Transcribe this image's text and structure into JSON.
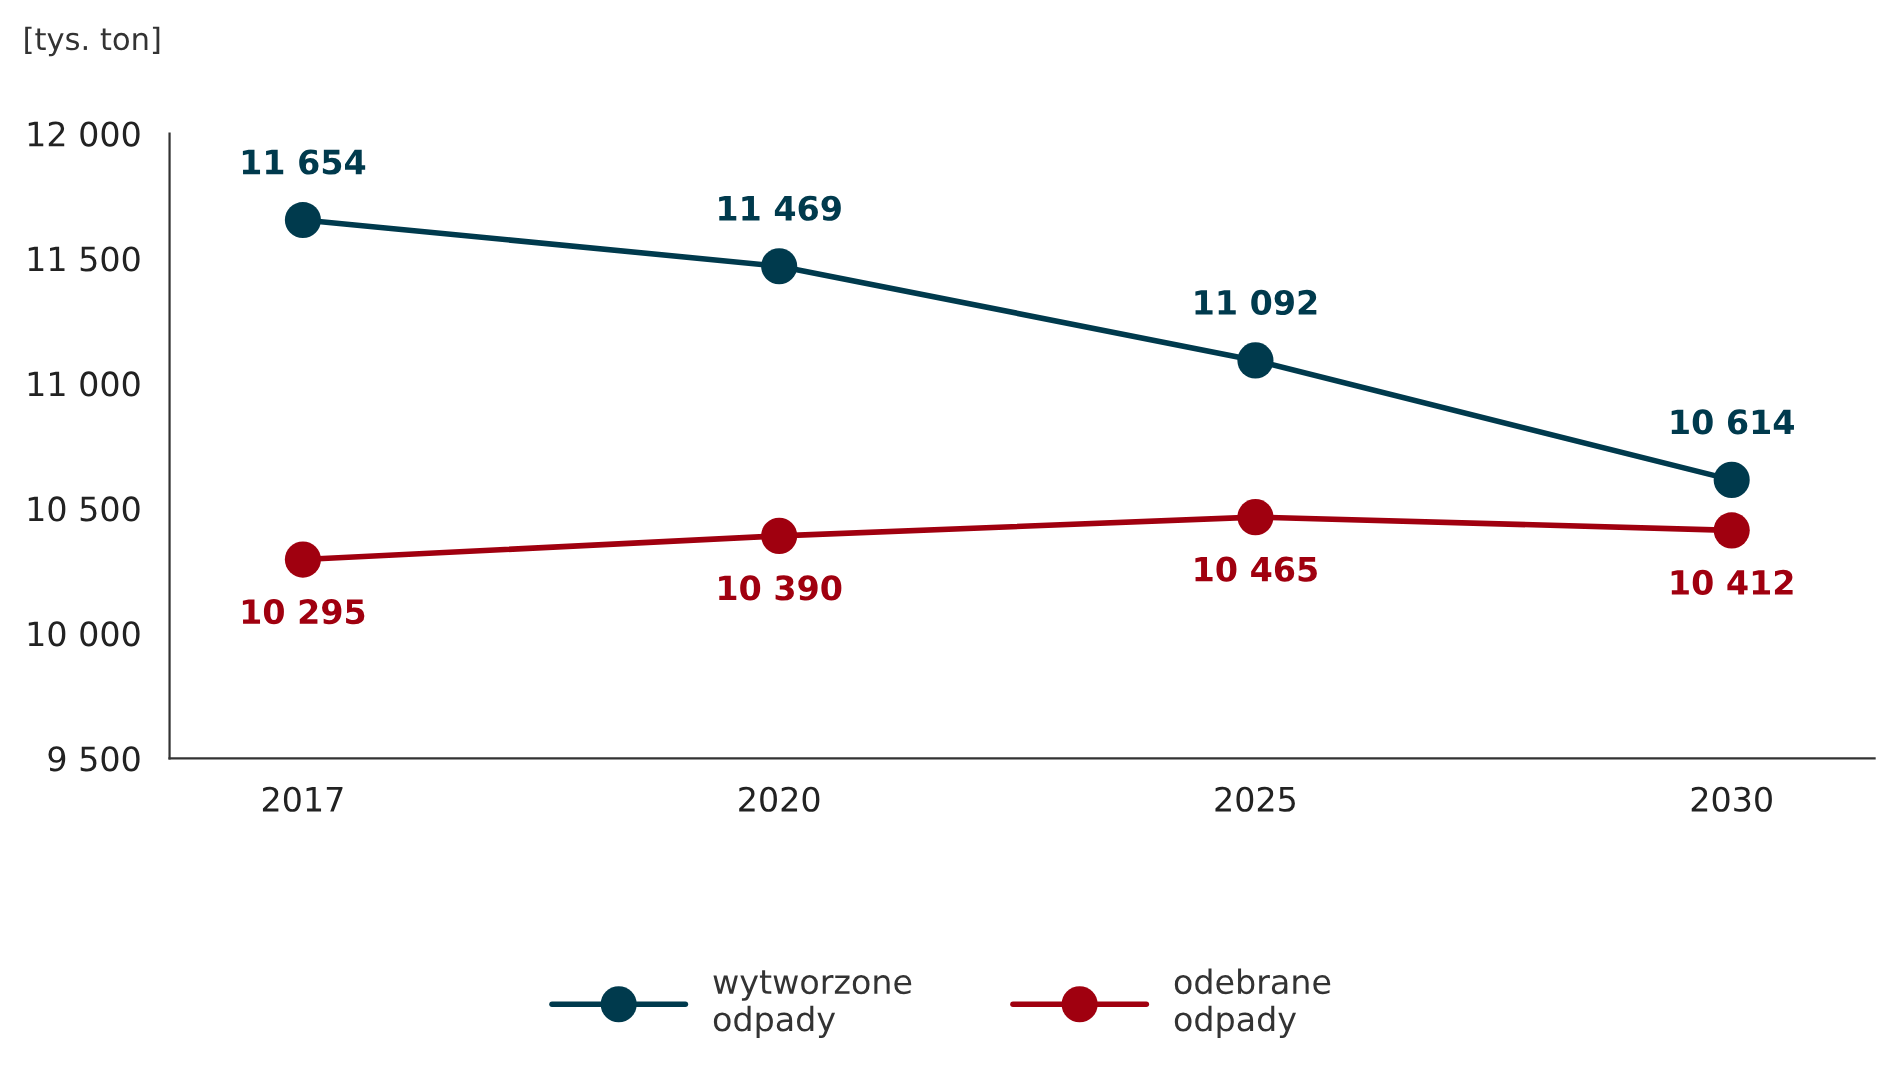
{
  "chart_data": {
    "type": "line",
    "ylabel": "[tys. ton]",
    "categories": [
      "2017",
      "2020",
      "2025",
      "2030"
    ],
    "series": [
      {
        "name": "wytworzone\nodpady",
        "color": "#003a4d",
        "values": [
          11654,
          11469,
          11092,
          10614
        ],
        "value_labels": [
          "11 654",
          "11 469",
          "11 092",
          "10 614"
        ]
      },
      {
        "name": "odebrane\nodpady",
        "color": "#a0000f",
        "values": [
          10295,
          10390,
          10465,
          10412
        ],
        "value_labels": [
          "10 295",
          "10 390",
          "10 465",
          "10 412"
        ]
      }
    ],
    "ylim": [
      9500,
      12000
    ],
    "yticks": [
      {
        "value": 9500,
        "label": "9 500"
      },
      {
        "value": 10000,
        "label": "10 000"
      },
      {
        "value": 10500,
        "label": "10 500"
      },
      {
        "value": 11000,
        "label": "11 000"
      },
      {
        "value": 11500,
        "label": "11 500"
      },
      {
        "value": 12000,
        "label": "12 000"
      }
    ],
    "grid": false,
    "legend": "bottom",
    "marker": "circle",
    "line_style": "solid"
  }
}
